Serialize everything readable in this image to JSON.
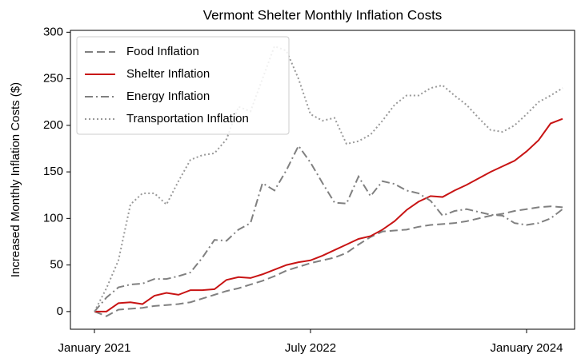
{
  "chart_data": {
    "type": "line",
    "title": "Vermont Shelter Monthly Inflation Costs",
    "ylabel": "Increased Monthly Inflation Costs ($)",
    "x": [
      "2021-01",
      "2021-02",
      "2021-03",
      "2021-04",
      "2021-05",
      "2021-06",
      "2021-07",
      "2021-08",
      "2021-09",
      "2021-10",
      "2021-11",
      "2021-12",
      "2022-01",
      "2022-02",
      "2022-03",
      "2022-04",
      "2022-05",
      "2022-06",
      "2022-07",
      "2022-08",
      "2022-09",
      "2022-10",
      "2022-11",
      "2022-12",
      "2023-01",
      "2023-02",
      "2023-03",
      "2023-04",
      "2023-05",
      "2023-06",
      "2023-07",
      "2023-08",
      "2023-09",
      "2023-10",
      "2023-11",
      "2023-12",
      "2024-01",
      "2024-02",
      "2024-03",
      "2024-04"
    ],
    "series": [
      {
        "name": "Food Inflation",
        "color": "#808080",
        "linestyle": "dashed",
        "values": [
          0,
          -5,
          2,
          3,
          4,
          6,
          7,
          8,
          10,
          14,
          18,
          22,
          25,
          29,
          33,
          38,
          44,
          48,
          52,
          55,
          58,
          63,
          72,
          80,
          86,
          87,
          88,
          91,
          93,
          94,
          95,
          97,
          100,
          103,
          105,
          108,
          110,
          112,
          113,
          112
        ]
      },
      {
        "name": "Shelter Inflation",
        "color": "#c81414",
        "linestyle": "solid",
        "values": [
          0,
          0,
          9,
          10,
          8,
          17,
          20,
          18,
          23,
          23,
          24,
          34,
          37,
          36,
          40,
          45,
          50,
          53,
          55,
          60,
          66,
          72,
          78,
          81,
          88,
          97,
          109,
          118,
          124,
          123,
          130,
          136,
          143,
          150,
          156,
          162,
          172,
          184,
          202,
          207
        ]
      },
      {
        "name": "Energy Inflation",
        "color": "#808080",
        "linestyle": "dashdot",
        "values": [
          0,
          15,
          26,
          29,
          30,
          35,
          35,
          38,
          42,
          58,
          77,
          76,
          88,
          95,
          138,
          130,
          152,
          178,
          160,
          138,
          117,
          116,
          145,
          124,
          140,
          137,
          130,
          127,
          119,
          103,
          108,
          110,
          107,
          104,
          103,
          95,
          93,
          95,
          100,
          110
        ]
      },
      {
        "name": "Transportation Inflation",
        "color": "#999999",
        "linestyle": "dotted",
        "values": [
          0,
          25,
          55,
          115,
          127,
          127,
          115,
          140,
          163,
          168,
          170,
          185,
          220,
          215,
          250,
          285,
          280,
          250,
          212,
          205,
          208,
          180,
          183,
          190,
          205,
          222,
          232,
          232,
          240,
          243,
          232,
          222,
          208,
          195,
          193,
          200,
          212,
          225,
          232,
          240
        ]
      }
    ],
    "xlim": [
      "2020-11",
      "2024-05"
    ],
    "xticks": [
      {
        "value": "2021-01",
        "label": "January 2021"
      },
      {
        "value": "2022-07",
        "label": "July 2022"
      },
      {
        "value": "2024-01",
        "label": "January 2024"
      }
    ],
    "ylim": [
      -19,
      302
    ],
    "yticks": [
      0,
      50,
      100,
      150,
      200,
      250,
      300
    ],
    "legend": "upper left",
    "grid": false
  }
}
